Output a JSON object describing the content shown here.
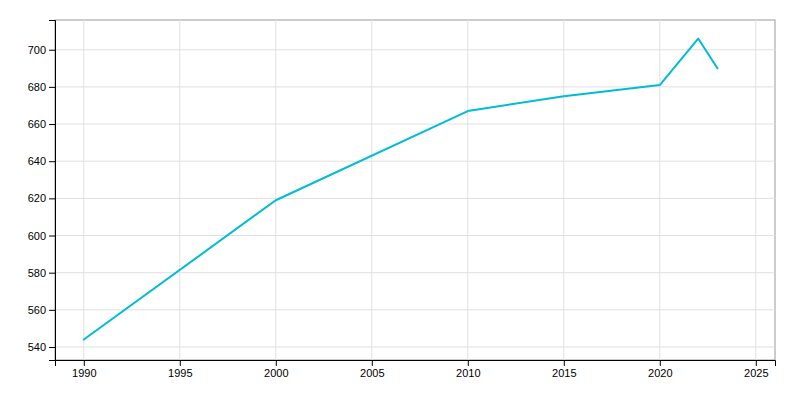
{
  "chart_data": {
    "type": "line",
    "x": [
      1990,
      2000,
      2010,
      2015,
      2020,
      2022,
      2023
    ],
    "values": [
      544,
      619,
      667,
      675,
      681,
      706,
      690
    ],
    "color": "#00BCD4",
    "xlim": [
      1988.5,
      2026
    ],
    "ylim": [
      533,
      716
    ],
    "xticks": [
      1990,
      1995,
      2000,
      2005,
      2010,
      2015,
      2020,
      2025
    ],
    "yticks": [
      540,
      560,
      580,
      600,
      620,
      640,
      660,
      680,
      700
    ],
    "grid": true
  }
}
